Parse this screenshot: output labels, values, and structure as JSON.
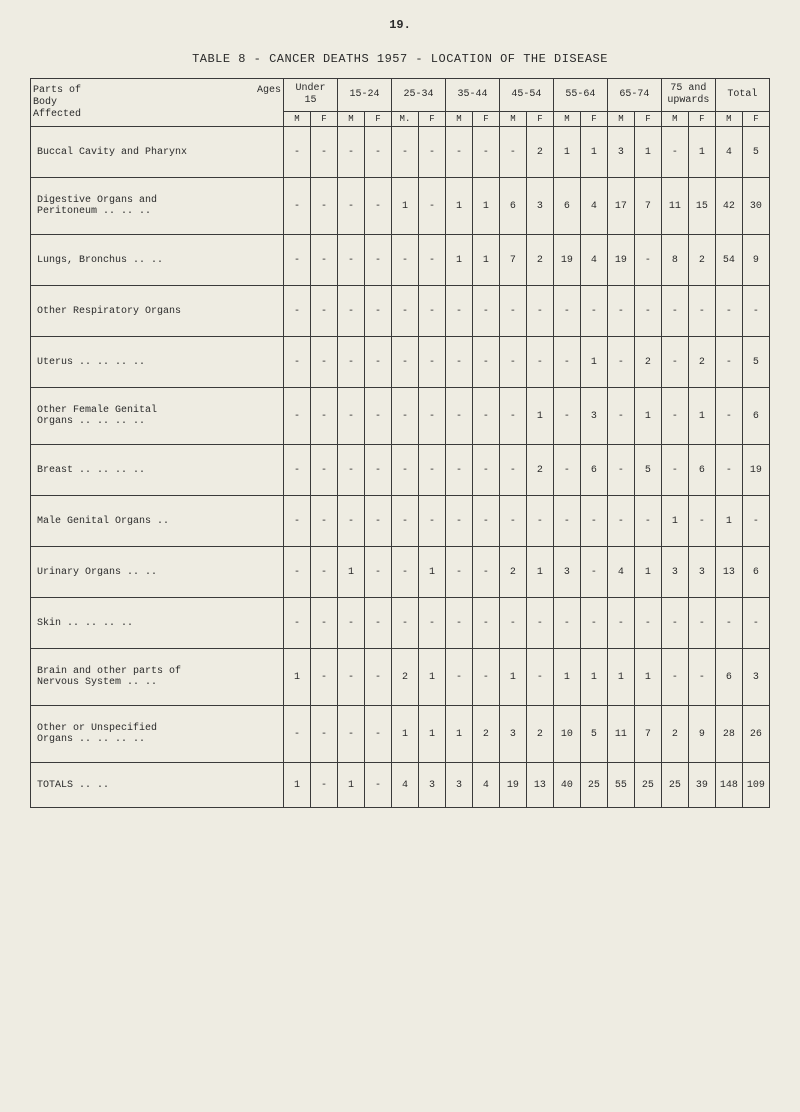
{
  "page_number": "19.",
  "title": "TABLE 8 - CANCER DEATHS 1957 - LOCATION OF THE DISEASE",
  "header": {
    "parts_label": "Parts of\nBody\nAffected",
    "ages_label": "Ages",
    "age_groups": [
      "Under\n15",
      "15-24",
      "25-34",
      "35-44",
      "45-54",
      "55-64",
      "65-74",
      "75 and\nupwards",
      "Total"
    ],
    "sub": [
      "M",
      "F",
      "M",
      "F",
      "M.",
      "F",
      "M",
      "F",
      "M",
      "F",
      "M",
      "F",
      "M",
      "F",
      "M",
      "F",
      "M",
      "F"
    ]
  },
  "rows": [
    {
      "label": "Buccal Cavity and Pharynx",
      "cells": [
        "-",
        "-",
        "-",
        "-",
        "-",
        "-",
        "-",
        "-",
        "-",
        "2",
        "1",
        "1",
        "3",
        "1",
        "-",
        "1",
        "4",
        "5"
      ]
    },
    {
      "label": "Digestive Organs and\nPeritoneum ..   ..   ..",
      "cells": [
        "-",
        "-",
        "-",
        "-",
        "1",
        "-",
        "1",
        "1",
        "6",
        "3",
        "6",
        "4",
        "17",
        "7",
        "11",
        "15",
        "42",
        "30"
      ],
      "tall": true
    },
    {
      "label": "Lungs, Bronchus   ..   ..",
      "cells": [
        "-",
        "-",
        "-",
        "-",
        "-",
        "-",
        "1",
        "1",
        "7",
        "2",
        "19",
        "4",
        "19",
        "-",
        "8",
        "2",
        "54",
        "9"
      ]
    },
    {
      "label": "Other Respiratory Organs",
      "cells": [
        "-",
        "-",
        "-",
        "-",
        "-",
        "-",
        "-",
        "-",
        "-",
        "-",
        "-",
        "-",
        "-",
        "-",
        "-",
        "-",
        "-",
        "-"
      ]
    },
    {
      "label": "Uterus ..   ..   ..   ..",
      "cells": [
        "-",
        "-",
        "-",
        "-",
        "-",
        "-",
        "-",
        "-",
        "-",
        "-",
        "-",
        "1",
        "-",
        "2",
        "-",
        "2",
        "-",
        "5"
      ]
    },
    {
      "label": "Other Female Genital\nOrgans ..   ..   ..   ..",
      "cells": [
        "-",
        "-",
        "-",
        "-",
        "-",
        "-",
        "-",
        "-",
        "-",
        "1",
        "-",
        "3",
        "-",
        "1",
        "-",
        "1",
        "-",
        "6"
      ],
      "tall": true
    },
    {
      "label": "Breast ..   ..   ..   ..",
      "cells": [
        "-",
        "-",
        "-",
        "-",
        "-",
        "-",
        "-",
        "-",
        "-",
        "2",
        "-",
        "6",
        "-",
        "5",
        "-",
        "6",
        "-",
        "19"
      ]
    },
    {
      "label": "Male Genital Organs   ..",
      "cells": [
        "-",
        "-",
        "-",
        "-",
        "-",
        "-",
        "-",
        "-",
        "-",
        "-",
        "-",
        "-",
        "-",
        "-",
        "1",
        "-",
        "1",
        "-"
      ]
    },
    {
      "label": "Urinary Organs   ..   ..",
      "cells": [
        "-",
        "-",
        "1",
        "-",
        "-",
        "1",
        "-",
        "-",
        "2",
        "1",
        "3",
        "-",
        "4",
        "1",
        "3",
        "3",
        "13",
        "6"
      ]
    },
    {
      "label": "Skin    ..   ..   ..   ..",
      "cells": [
        "-",
        "-",
        "-",
        "-",
        "-",
        "-",
        "-",
        "-",
        "-",
        "-",
        "-",
        "-",
        "-",
        "-",
        "-",
        "-",
        "-",
        "-"
      ]
    },
    {
      "label": "Brain and other parts of\nNervous System  ..   ..",
      "cells": [
        "1",
        "-",
        "-",
        "-",
        "2",
        "1",
        "-",
        "-",
        "1",
        "-",
        "1",
        "1",
        "1",
        "1",
        "-",
        "-",
        "6",
        "3"
      ],
      "tall": true
    },
    {
      "label": "Other or Unspecified\nOrgans ..   ..   ..   ..",
      "cells": [
        "-",
        "-",
        "-",
        "-",
        "1",
        "1",
        "1",
        "2",
        "3",
        "2",
        "10",
        "5",
        "11",
        "7",
        "2",
        "9",
        "28",
        "26"
      ],
      "tall": true
    },
    {
      "label": "             TOTALS  ..   ..",
      "cells": [
        "1",
        "-",
        "1",
        "-",
        "4",
        "3",
        "3",
        "4",
        "19",
        "13",
        "40",
        "25",
        "55",
        "25",
        "25",
        "39",
        "148",
        "109"
      ],
      "totals": true
    }
  ],
  "colors": {
    "background": "#eeece2",
    "border": "#3a3a3a",
    "text": "#2a2a2a"
  }
}
